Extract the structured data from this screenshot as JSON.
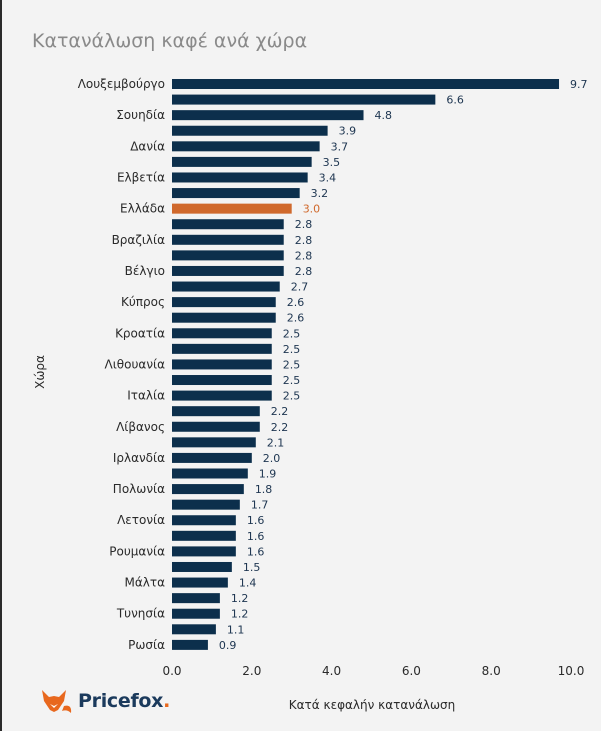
{
  "chart_data": {
    "type": "bar",
    "orientation": "horizontal",
    "title": "Κατανάλωση καφέ ανά χώρα",
    "xlabel": "Κατά κεφαλήν κατανάλωση",
    "ylabel": "Χώρα",
    "xlim": [
      0,
      10
    ],
    "xticks": [
      "0.0",
      "2.0",
      "4.0",
      "6.0",
      "8.0",
      "10.0"
    ],
    "grid": false,
    "bar_color": "#0c2f4c",
    "highlight_color": "#d0692c",
    "highlight_index": 8,
    "categories": [
      "Λουξεμβούργο",
      "",
      "Σουηδία",
      "",
      "Δανία",
      "",
      "Ελβετία",
      "",
      "Ελλάδα",
      "",
      "Βραζιλία",
      "",
      "Βέλγιο",
      "",
      "Κύπρος",
      "",
      "Κροατία",
      "",
      "Λιθουανία",
      "",
      "Ιταλία",
      "",
      "Λίβανος",
      "",
      "Ιρλανδία",
      "",
      "Πολωνία",
      "",
      "Λετονία",
      "",
      "Ρουμανία",
      "",
      "Μάλτα",
      "",
      "Τυνησία",
      "",
      "Ρωσία"
    ],
    "values": [
      9.7,
      6.6,
      4.8,
      3.9,
      3.7,
      3.5,
      3.4,
      3.2,
      3.0,
      2.8,
      2.8,
      2.8,
      2.8,
      2.7,
      2.6,
      2.6,
      2.5,
      2.5,
      2.5,
      2.5,
      2.5,
      2.2,
      2.2,
      2.1,
      2.0,
      1.9,
      1.8,
      1.7,
      1.6,
      1.6,
      1.6,
      1.5,
      1.4,
      1.2,
      1.2,
      1.1,
      0.9
    ]
  },
  "brand": {
    "name": "Pricefox",
    "dot": ".",
    "icon": "fox-logo-icon",
    "text_color": "#1b3a5c",
    "accent_color": "#e8681e"
  }
}
